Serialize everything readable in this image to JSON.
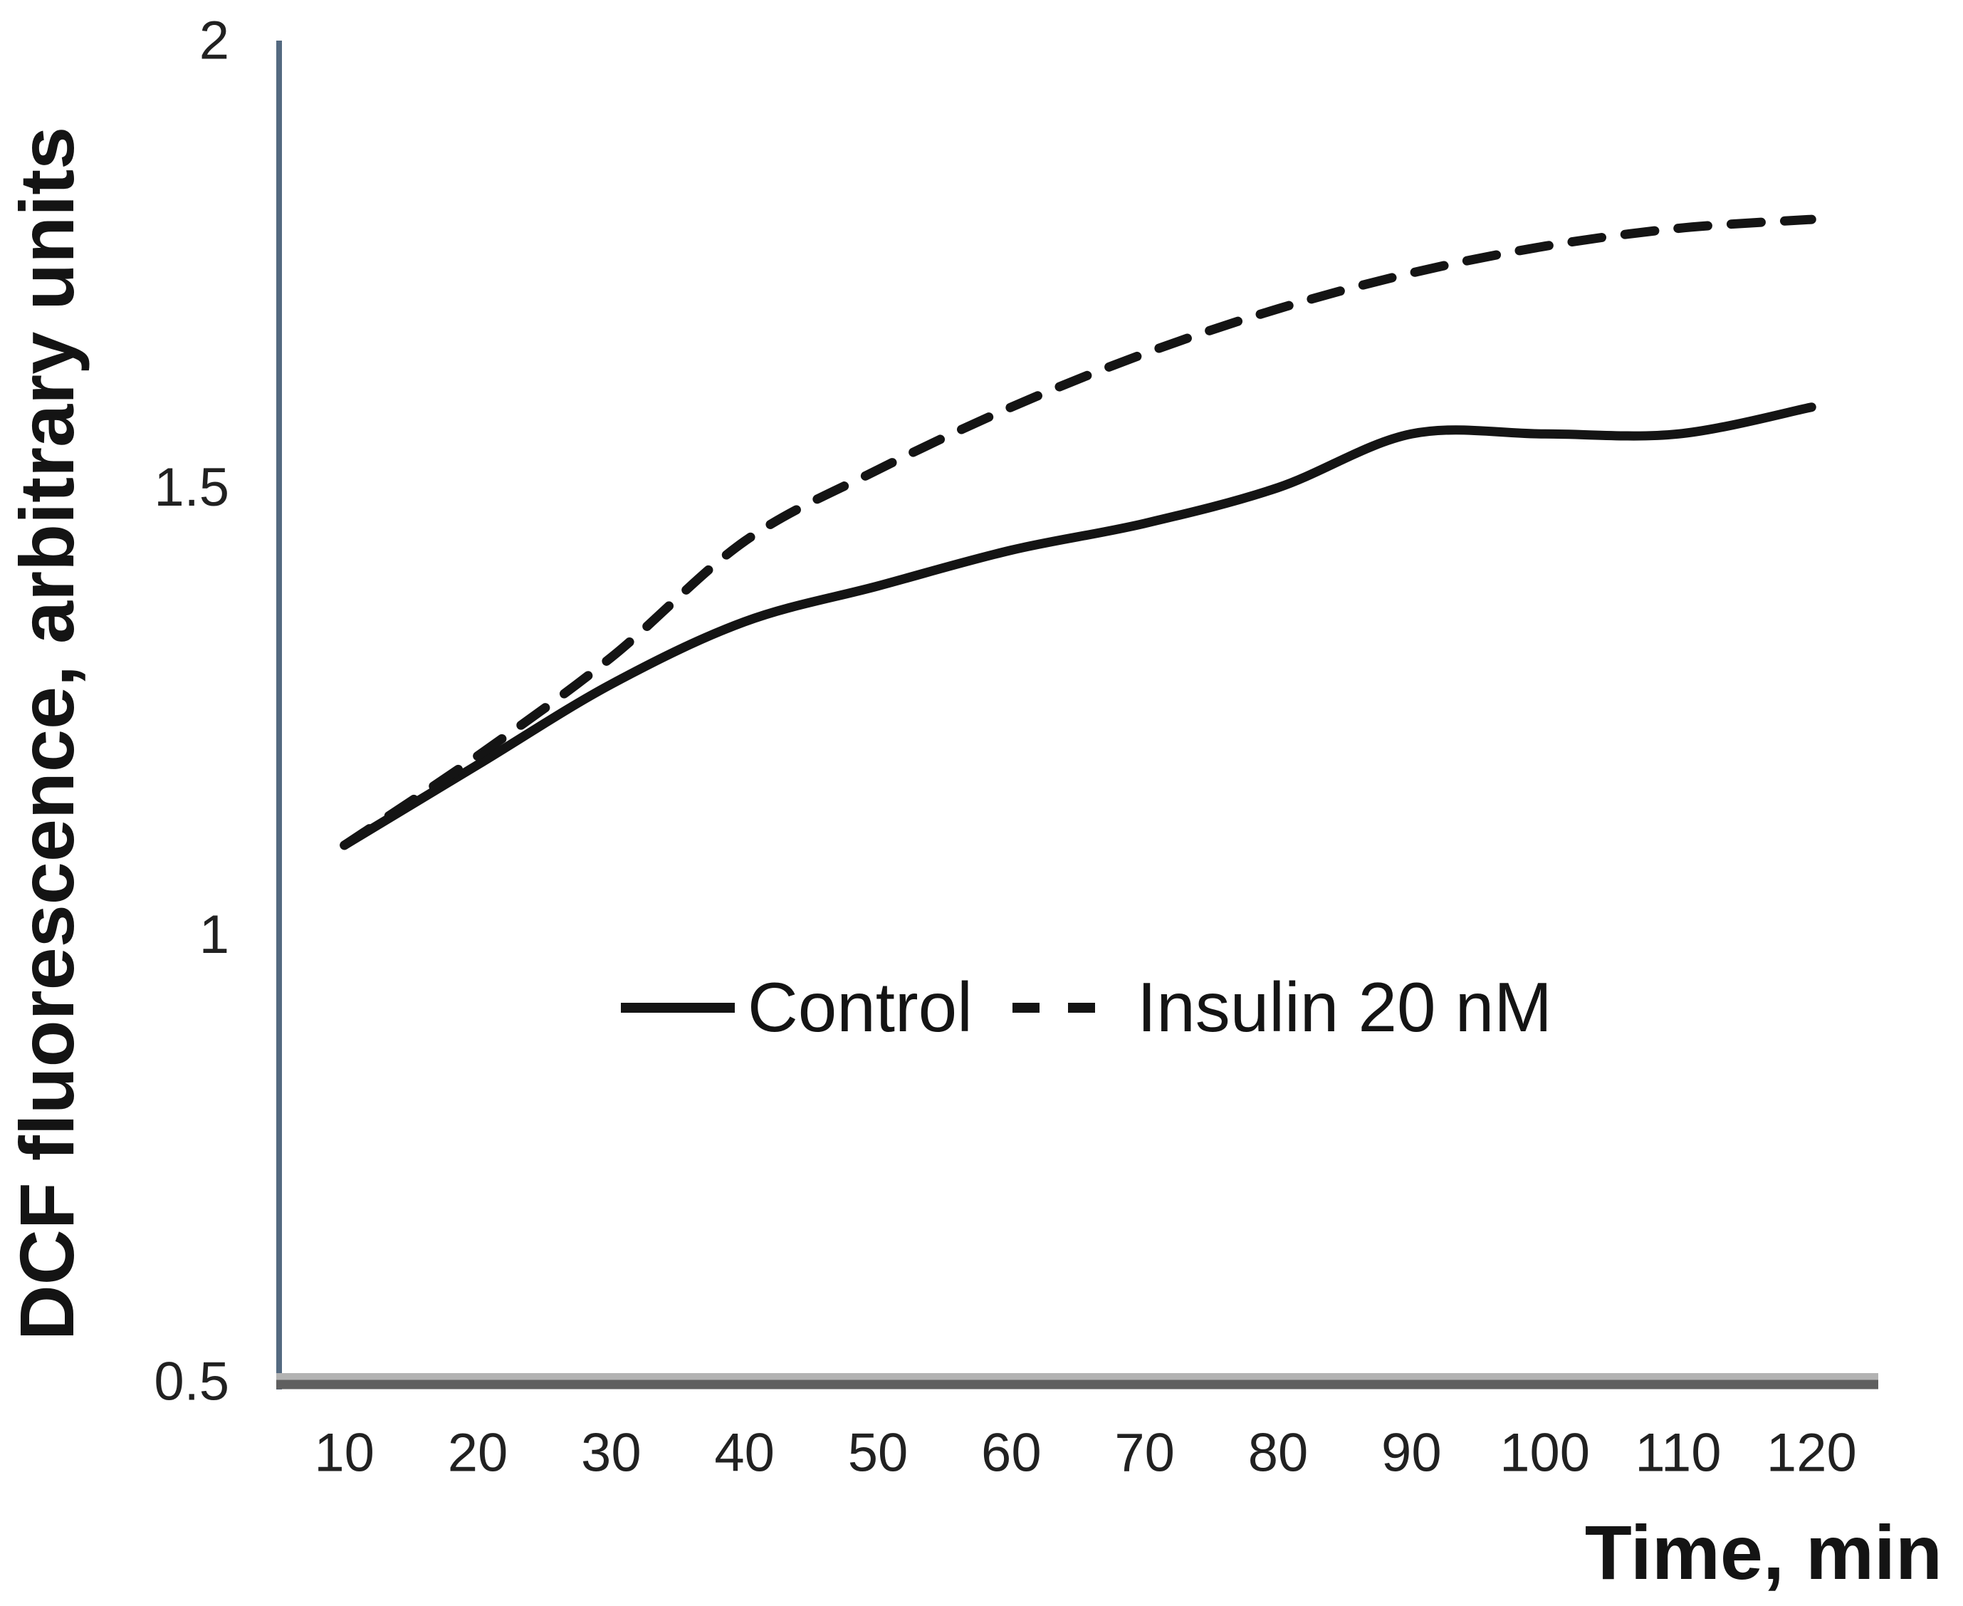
{
  "chart_data": {
    "type": "line",
    "categories": [
      10,
      20,
      30,
      40,
      50,
      60,
      70,
      80,
      90,
      100,
      110,
      120
    ],
    "series": [
      {
        "name": "Control",
        "style": "solid",
        "values": [
          1.1,
          1.19,
          1.28,
          1.35,
          1.39,
          1.43,
          1.46,
          1.5,
          1.56,
          1.56,
          1.56,
          1.59
        ]
      },
      {
        "name": "Insulin 20 nM",
        "style": "dashed",
        "values": [
          1.1,
          1.2,
          1.31,
          1.44,
          1.52,
          1.59,
          1.65,
          1.7,
          1.74,
          1.77,
          1.79,
          1.8
        ]
      }
    ],
    "title": "",
    "xlabel": "Time, min",
    "ylabel": "DCF fluorescence, arbitrary units",
    "ylim": [
      0.5,
      2
    ],
    "yticks": [
      0.5,
      1,
      1.5,
      2
    ],
    "grid": false,
    "legend_position": "inside-center",
    "colors": {
      "ink": "#141414",
      "y_axis": "#546a80",
      "x_axis_dark": "#5f5f5f",
      "x_axis_light": "#b3b3b3"
    }
  }
}
